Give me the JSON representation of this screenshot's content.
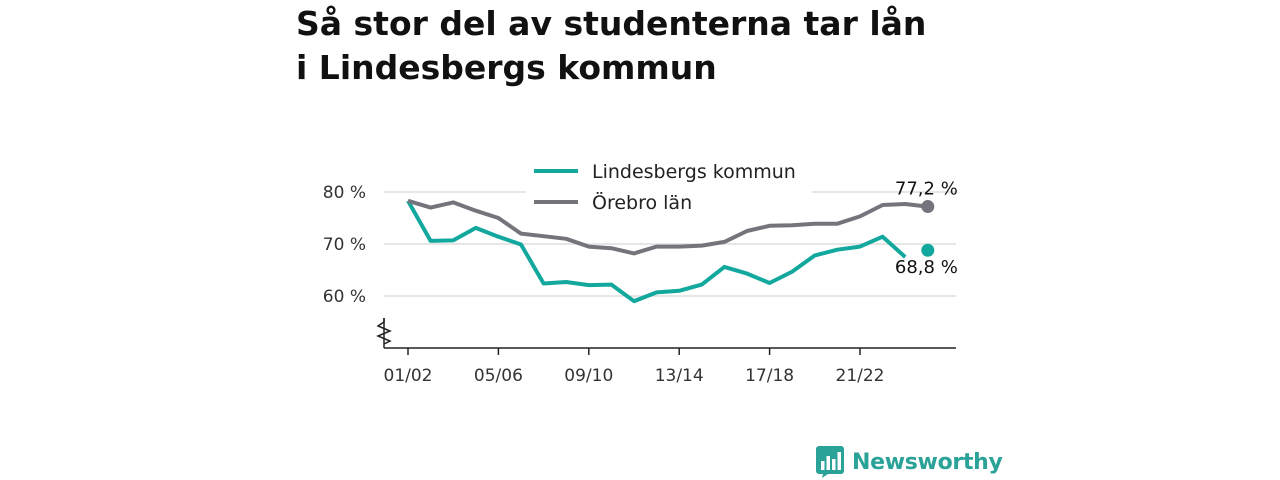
{
  "title": "Så stor del av studenterna tar lån i Lindesbergs kommun",
  "brand": {
    "name": "Newsworthy",
    "icon": "bar-chart-logo-icon",
    "color": "#2aa298"
  },
  "chart_data": {
    "type": "line",
    "x": [
      "01/02",
      "02/03",
      "03/04",
      "04/05",
      "05/06",
      "06/07",
      "07/08",
      "08/09",
      "09/10",
      "10/11",
      "11/12",
      "12/13",
      "13/14",
      "14/15",
      "15/16",
      "16/17",
      "17/18",
      "18/19",
      "19/20",
      "20/21",
      "21/22",
      "22/23",
      "23/24",
      "24/25"
    ],
    "x_tick_labels": [
      "01/02",
      "05/06",
      "09/10",
      "13/14",
      "17/18",
      "21/22"
    ],
    "y_tick_labels": [
      "80 %",
      "70 %",
      "60 %"
    ],
    "y_ticks": [
      80,
      70,
      60
    ],
    "ylim": [
      51,
      83
    ],
    "axis_break": true,
    "legend_position": "top-center",
    "grid": "horizontal",
    "series": [
      {
        "name": "Lindesbergs kommun",
        "color": "#13a89e",
        "values": [
          78.3,
          70.6,
          70.7,
          73.1,
          71.4,
          69.9,
          62.4,
          62.7,
          62.1,
          62.2,
          59.0,
          60.7,
          61.0,
          62.2,
          65.6,
          64.3,
          62.5,
          64.7,
          67.8,
          68.9,
          69.5,
          71.4,
          67.5,
          null
        ],
        "end_value": 68.8,
        "end_label": "68,8 %"
      },
      {
        "name": "Örebro län",
        "color": "#75747c",
        "values": [
          78.3,
          77.0,
          78.0,
          76.4,
          75.0,
          72.0,
          71.5,
          71.0,
          69.5,
          69.2,
          68.2,
          69.5,
          69.5,
          69.7,
          70.4,
          72.5,
          73.5,
          73.6,
          73.9,
          73.9,
          75.3,
          77.5,
          77.7,
          77.2
        ],
        "end_value": 77.2,
        "end_label": "77,2 %"
      }
    ]
  }
}
